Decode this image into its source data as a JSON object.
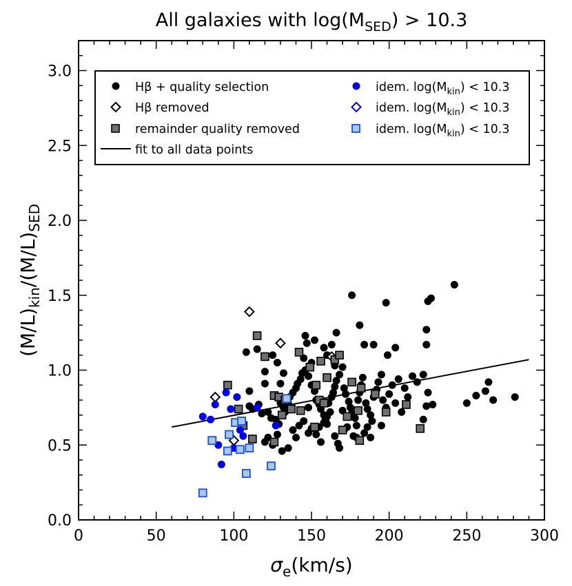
{
  "chart_data": {
    "type": "scatter",
    "title": {
      "main": "All galaxies with log(M",
      "sub": "SED",
      "rest": ") > 10.3"
    },
    "xlabel": {
      "main": "σ",
      "sub": "e",
      "rest": "(km/s)"
    },
    "ylabel": {
      "p1": "(M/L)",
      "s1": "kin",
      "p2": "/(M/L)",
      "s2": "SED"
    },
    "xlim": [
      0,
      300
    ],
    "ylim": [
      0.0,
      3.2
    ],
    "x_ticks": [
      0,
      50,
      100,
      150,
      200,
      250,
      300
    ],
    "y_ticks": [
      0.0,
      0.5,
      1.0,
      1.5,
      2.0,
      2.5,
      3.0
    ],
    "x_tick_labels": [
      "0",
      "50",
      "100",
      "150",
      "200",
      "250",
      "300"
    ],
    "y_tick_labels": [
      "0.0",
      "0.5",
      "1.0",
      "1.5",
      "2.0",
      "2.5",
      "3.0"
    ],
    "legend_position": "top",
    "legend": [
      {
        "label": "Hβ + quality selection",
        "marker": "circle",
        "color": "#000000"
      },
      {
        "label": "Hβ removed",
        "marker": "diamond",
        "color": "#000000"
      },
      {
        "label": "remainder quality removed",
        "marker": "square",
        "color": "#555555"
      },
      {
        "label": "fit to all data points",
        "marker": "line",
        "color": "#000000"
      },
      {
        "label": {
          "main": "idem. log(M",
          "sub": "kin",
          "rest": ") < 10.3"
        },
        "marker": "circle",
        "color": "#0000ee"
      },
      {
        "label": {
          "main": "idem. log(M",
          "sub": "kin",
          "rest": ") < 10.3"
        },
        "marker": "diamond",
        "color": "#0000ee"
      },
      {
        "label": {
          "main": "idem. log(M",
          "sub": "kin",
          "rest": ") < 10.3"
        },
        "marker": "square",
        "color": "#1a4fd6"
      }
    ],
    "fit_line": {
      "x": [
        60,
        290
      ],
      "y": [
        0.62,
        1.07
      ]
    },
    "series": [
      {
        "name": "Hβ + quality selection",
        "marker": "circle",
        "color": "#000000",
        "points": [
          [
            108,
            1.12
          ],
          [
            115,
            1.14
          ],
          [
            125,
            1.1
          ],
          [
            128,
            1.05
          ],
          [
            120,
            0.99
          ],
          [
            120,
            0.91
          ],
          [
            110,
            0.86
          ],
          [
            110,
            0.76
          ],
          [
            112,
            0.74
          ],
          [
            116,
            0.77
          ],
          [
            118,
            0.71
          ],
          [
            122,
            0.72
          ],
          [
            124,
            0.68
          ],
          [
            127,
            0.67
          ],
          [
            129,
            0.64
          ],
          [
            130,
            0.78
          ],
          [
            132,
            0.75
          ],
          [
            133,
            0.72
          ],
          [
            135,
            0.78
          ],
          [
            136,
            0.82
          ],
          [
            138,
            0.85
          ],
          [
            140,
            0.88
          ],
          [
            141,
            0.91
          ],
          [
            143,
            0.94
          ],
          [
            144,
            0.98
          ],
          [
            146,
            1.0
          ],
          [
            148,
            0.96
          ],
          [
            150,
            0.9
          ],
          [
            152,
            0.86
          ],
          [
            153,
            0.8
          ],
          [
            155,
            0.77
          ],
          [
            156,
            0.74
          ],
          [
            158,
            0.7
          ],
          [
            159,
            0.67
          ],
          [
            160,
            0.64
          ],
          [
            161,
            0.78
          ],
          [
            163,
            0.82
          ],
          [
            164,
            0.85
          ],
          [
            165,
            0.89
          ],
          [
            166,
            0.93
          ],
          [
            168,
            0.97
          ],
          [
            170,
            1.02
          ],
          [
            171,
            0.88
          ],
          [
            172,
            0.84
          ],
          [
            174,
            0.79
          ],
          [
            175,
            0.75
          ],
          [
            176,
            0.71
          ],
          [
            178,
            0.68
          ],
          [
            179,
            0.63
          ],
          [
            180,
            0.8
          ],
          [
            181,
            0.85
          ],
          [
            182,
            0.9
          ],
          [
            183,
            0.95
          ],
          [
            185,
            0.78
          ],
          [
            186,
            0.74
          ],
          [
            188,
            0.7
          ],
          [
            189,
            0.66
          ],
          [
            190,
            0.82
          ],
          [
            192,
            0.87
          ],
          [
            193,
            0.92
          ],
          [
            195,
            0.97
          ],
          [
            196,
            0.8
          ],
          [
            198,
            0.75
          ],
          [
            200,
            0.84
          ],
          [
            202,
            0.9
          ],
          [
            204,
            0.78
          ],
          [
            206,
            0.94
          ],
          [
            208,
            0.72
          ],
          [
            210,
            0.88
          ],
          [
            212,
            0.82
          ],
          [
            215,
            0.96
          ],
          [
            218,
            0.92
          ],
          [
            222,
            0.97
          ],
          [
            225,
            0.85
          ],
          [
            228,
            0.77
          ],
          [
            146,
            1.23
          ],
          [
            147,
            1.18
          ],
          [
            152,
            1.2
          ],
          [
            158,
            1.15
          ],
          [
            163,
            1.17
          ],
          [
            166,
            1.25
          ],
          [
            176,
            1.5
          ],
          [
            181,
            1.3
          ],
          [
            184,
            1.17
          ],
          [
            190,
            1.17
          ],
          [
            198,
            1.45
          ],
          [
            199,
            1.1
          ],
          [
            204,
            1.15
          ],
          [
            224,
            1.27
          ],
          [
            224,
            1.17
          ],
          [
            225,
            1.46
          ],
          [
            227,
            1.48
          ],
          [
            242,
            1.57
          ],
          [
            250,
            0.78
          ],
          [
            256,
            0.83
          ],
          [
            262,
            0.86
          ],
          [
            264,
            0.92
          ],
          [
            267,
            0.8
          ],
          [
            281,
            0.82
          ],
          [
            222,
            0.67
          ],
          [
            224,
            0.76
          ],
          [
            120,
            0.52
          ],
          [
            122,
            0.55
          ],
          [
            125,
            0.5
          ],
          [
            128,
            0.57
          ],
          [
            131,
            0.46
          ],
          [
            135,
            0.48
          ],
          [
            138,
            0.6
          ],
          [
            140,
            0.55
          ],
          [
            142,
            0.63
          ],
          [
            145,
            0.66
          ],
          [
            148,
            0.58
          ],
          [
            150,
            0.61
          ],
          [
            153,
            0.57
          ],
          [
            156,
            0.52
          ],
          [
            158,
            0.65
          ],
          [
            160,
            0.69
          ],
          [
            162,
            0.72
          ],
          [
            165,
            0.56
          ],
          [
            167,
            0.51
          ],
          [
            168,
            0.48
          ],
          [
            171,
            0.6
          ],
          [
            173,
            0.62
          ],
          [
            177,
            0.56
          ],
          [
            179,
            0.55
          ],
          [
            184,
            0.58
          ],
          [
            186,
            0.62
          ],
          [
            188,
            0.55
          ],
          [
            195,
            0.63
          ],
          [
            130,
            0.91
          ],
          [
            132,
            0.98
          ],
          [
            145,
            1.08
          ],
          [
            150,
            1.05
          ],
          [
            160,
            1.1
          ],
          [
            165,
            1.03
          ],
          [
            170,
            0.73
          ],
          [
            155,
            0.62
          ],
          [
            148,
            0.75
          ]
        ]
      },
      {
        "name": "Hβ removed",
        "marker": "diamond",
        "color": "#000000",
        "points": [
          [
            88,
            0.82
          ],
          [
            110,
            1.39
          ],
          [
            130,
            1.18
          ],
          [
            163,
            1.09
          ],
          [
            100,
            0.53
          ]
        ]
      },
      {
        "name": "remainder quality removed",
        "marker": "square",
        "color": "#555555",
        "points": [
          [
            96,
            0.9
          ],
          [
            115,
            1.23
          ],
          [
            120,
            1.09
          ],
          [
            126,
            0.83
          ],
          [
            129,
            0.82
          ],
          [
            133,
            0.8
          ],
          [
            137,
            0.74
          ],
          [
            142,
            1.12
          ],
          [
            149,
            1.02
          ],
          [
            153,
            0.9
          ],
          [
            155,
            0.8
          ],
          [
            156,
            1.06
          ],
          [
            165,
            1.07
          ],
          [
            168,
            1.1
          ],
          [
            173,
            0.69
          ],
          [
            176,
            0.92
          ],
          [
            180,
            0.73
          ],
          [
            182,
            0.88
          ],
          [
            191,
            0.84
          ],
          [
            198,
            0.72
          ],
          [
            211,
            0.77
          ],
          [
            220,
            0.61
          ],
          [
            126,
            0.52
          ],
          [
            131,
            0.7
          ],
          [
            143,
            0.73
          ],
          [
            152,
            0.62
          ],
          [
            158,
            0.78
          ],
          [
            170,
            0.6
          ],
          [
            181,
            0.53
          ],
          [
            106,
            0.63
          ],
          [
            103,
            0.74
          ],
          [
            112,
            0.54
          ],
          [
            160,
            0.95
          ]
        ]
      },
      {
        "name": "idem. log(Mkin) < 10.3",
        "marker": "circle",
        "color": "#0000ee",
        "points": [
          [
            80,
            0.69
          ],
          [
            85,
            0.67
          ],
          [
            88,
            0.77
          ],
          [
            90,
            0.5
          ],
          [
            92,
            0.37
          ],
          [
            95,
            0.85
          ],
          [
            98,
            0.74
          ],
          [
            100,
            0.48
          ],
          [
            102,
            0.82
          ],
          [
            104,
            0.6
          ],
          [
            106,
            0.56
          ],
          [
            115,
            0.75
          ],
          [
            127,
            0.63
          ]
        ]
      },
      {
        "name": "idem. log(Mkin) < 10.3",
        "marker": "diamond",
        "color": "#0000ee",
        "points": []
      },
      {
        "name": "idem. log(Mkin) < 10.3",
        "marker": "square",
        "color": "#1a4fd6",
        "points": [
          [
            80,
            0.18
          ],
          [
            86,
            0.53
          ],
          [
            96,
            0.46
          ],
          [
            97,
            0.57
          ],
          [
            101,
            0.65
          ],
          [
            104,
            0.47
          ],
          [
            105,
            0.66
          ],
          [
            108,
            0.31
          ],
          [
            110,
            0.48
          ],
          [
            124,
            0.36
          ],
          [
            134,
            0.81
          ]
        ]
      }
    ]
  }
}
